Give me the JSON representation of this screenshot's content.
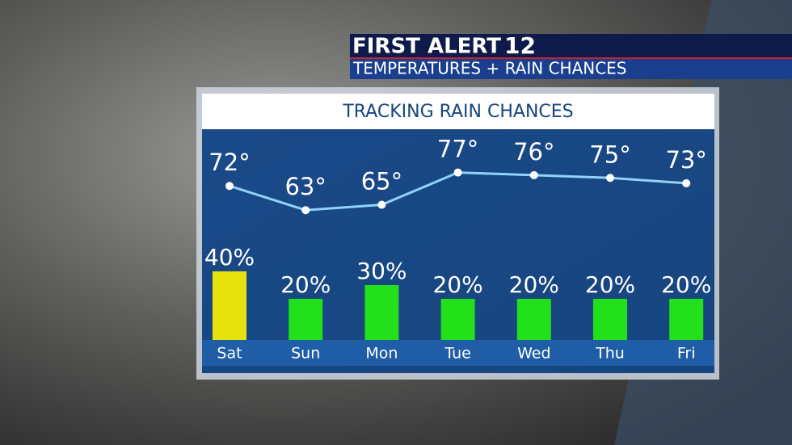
{
  "header": {
    "brand": "FIRST ALERT",
    "channel": "12",
    "subtitle": "TEMPERATURES + RAIN CHANCES"
  },
  "chart_data": {
    "type": "bar",
    "title": "TRACKING RAIN CHANCES",
    "categories": [
      "Sat",
      "Sun",
      "Mon",
      "Tue",
      "Wed",
      "Thu",
      "Fri"
    ],
    "series": [
      {
        "type": "line",
        "color": "#8fd3f7",
        "values": [
          72,
          63,
          65,
          77,
          76,
          75,
          73
        ],
        "value_labels": [
          "72°",
          "63°",
          "65°",
          "77°",
          "76°",
          "75°",
          "73°"
        ]
      },
      {
        "type": "bar",
        "colors": [
          "#e6e20e",
          "#22e01a",
          "#22e01a",
          "#22e01a",
          "#22e01a",
          "#22e01a",
          "#22e01a"
        ],
        "values": [
          40,
          20,
          30,
          20,
          20,
          20,
          20
        ],
        "value_labels": [
          "40%",
          "20%",
          "30%",
          "20%",
          "20%",
          "20%",
          "20%"
        ]
      }
    ]
  }
}
